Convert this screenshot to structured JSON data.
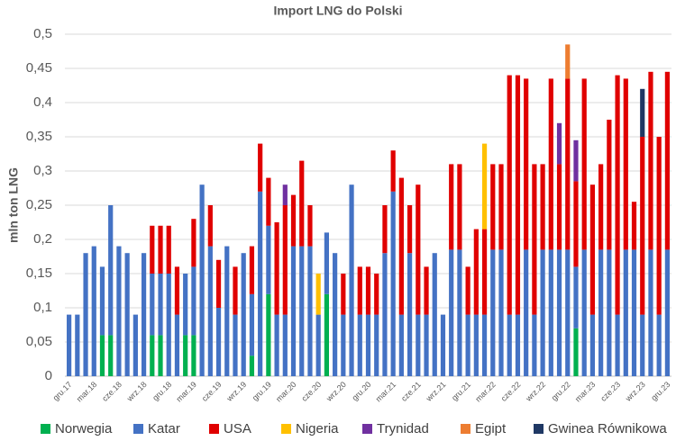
{
  "chart_data": {
    "type": "stacked_bar",
    "title": "Import LNG do Polski",
    "y_label": "mln ton LNG",
    "categories": [
      "gru.17",
      null,
      null,
      "mar.18",
      null,
      null,
      "cze.18",
      null,
      null,
      "wrz.18",
      null,
      null,
      "gru.18",
      null,
      null,
      "mar.19",
      null,
      null,
      "cze.19",
      null,
      null,
      "wrz.19",
      null,
      null,
      "gru.19",
      null,
      null,
      "mar.20",
      null,
      null,
      "cze.20",
      null,
      null,
      "wrz.20",
      null,
      null,
      "gru.20",
      null,
      null,
      "mar.21",
      null,
      null,
      "cze.21",
      null,
      null,
      "wrz.21",
      null,
      null,
      "gru.21",
      null,
      null,
      "mar.22",
      null,
      null,
      "cze.22",
      null,
      null,
      "wrz.22",
      null,
      null,
      "gru.22",
      null,
      null,
      "mar.23",
      null,
      null,
      "cze.23",
      null,
      null,
      "wrz.23",
      null,
      null,
      "gru.23"
    ],
    "series": [
      {
        "name": "Norwegia",
        "color": "#00b050",
        "values": [
          0,
          0,
          0,
          0,
          0.06,
          0.06,
          0,
          0,
          0,
          0,
          0.06,
          0.06,
          0,
          0,
          0.06,
          0.06,
          0,
          0,
          0,
          0,
          0,
          0,
          0.03,
          0,
          0.12,
          0,
          0,
          0,
          0,
          0,
          0,
          0.12,
          0,
          0,
          0,
          0,
          0,
          0,
          0,
          0,
          0,
          0,
          0,
          0,
          0,
          0,
          0,
          0,
          0,
          0,
          0,
          0,
          0,
          0,
          0,
          0,
          0,
          0,
          0,
          0,
          0,
          0.07,
          0,
          0,
          0,
          0,
          0,
          0,
          0,
          0,
          0,
          0,
          0
        ]
      },
      {
        "name": "Katar",
        "color": "#4472c4",
        "values": [
          0.09,
          0.09,
          0.18,
          0.19,
          0.1,
          0.19,
          0.19,
          0.18,
          0.09,
          0.18,
          0.09,
          0.09,
          0.15,
          0.09,
          0.09,
          0.1,
          0.28,
          0.19,
          0.1,
          0.19,
          0.09,
          0.18,
          0.09,
          0.27,
          0.1,
          0.09,
          0.09,
          0.19,
          0.19,
          0.19,
          0.09,
          0.09,
          0.18,
          0.09,
          0.28,
          0.09,
          0.09,
          0.09,
          0.18,
          0.27,
          0.09,
          0.18,
          0.09,
          0.09,
          0.18,
          0.09,
          0.185,
          0.185,
          0.09,
          0.09,
          0.09,
          0.185,
          0.185,
          0.09,
          0.09,
          0.185,
          0.09,
          0.185,
          0.185,
          0.185,
          0.185,
          0.09,
          0.185,
          0.09,
          0.185,
          0.185,
          0.09,
          0.185,
          0.185,
          0.09,
          0.185,
          0.09,
          0.185
        ]
      },
      {
        "name": "USA",
        "color": "#e00000",
        "values": [
          0,
          0,
          0,
          0,
          0,
          0,
          0,
          0,
          0,
          0,
          0.07,
          0.07,
          0.07,
          0.07,
          0,
          0.07,
          0,
          0.06,
          0.07,
          0,
          0.07,
          0,
          0.07,
          0.07,
          0.07,
          0.135,
          0.16,
          0.075,
          0.125,
          0.06,
          0,
          0,
          0,
          0.06,
          0,
          0.07,
          0.07,
          0.06,
          0.07,
          0.06,
          0.2,
          0.07,
          0.19,
          0.07,
          0,
          0,
          0.125,
          0.125,
          0.07,
          0.125,
          0.125,
          0.125,
          0.125,
          0.35,
          0.35,
          0.25,
          0.22,
          0.125,
          0.25,
          0.125,
          0.25,
          0.125,
          0.25,
          0.19,
          0.125,
          0.19,
          0.35,
          0.25,
          0.07,
          0.26,
          0.26,
          0.26,
          0.26
        ]
      },
      {
        "name": "Nigeria",
        "color": "#ffc000",
        "values": [
          0,
          0,
          0,
          0,
          0,
          0,
          0,
          0,
          0,
          0,
          0,
          0,
          0,
          0,
          0,
          0,
          0,
          0,
          0,
          0,
          0,
          0,
          0,
          0,
          0,
          0,
          0,
          0,
          0,
          0,
          0.06,
          0,
          0,
          0,
          0,
          0,
          0,
          0,
          0,
          0,
          0,
          0,
          0,
          0,
          0,
          0,
          0,
          0,
          0,
          0,
          0.125,
          0,
          0,
          0,
          0,
          0,
          0,
          0,
          0,
          0,
          0,
          0,
          0,
          0,
          0,
          0,
          0,
          0,
          0,
          0,
          0,
          0,
          0
        ]
      },
      {
        "name": "Trynidad",
        "color": "#7030a0",
        "values": [
          0,
          0,
          0,
          0,
          0,
          0,
          0,
          0,
          0,
          0,
          0,
          0,
          0,
          0,
          0,
          0,
          0,
          0,
          0,
          0,
          0,
          0,
          0,
          0,
          0,
          0,
          0.03,
          0,
          0,
          0,
          0,
          0,
          0,
          0,
          0,
          0,
          0,
          0,
          0,
          0,
          0,
          0,
          0,
          0,
          0,
          0,
          0,
          0,
          0,
          0,
          0,
          0,
          0,
          0,
          0,
          0,
          0,
          0,
          0,
          0.06,
          0,
          0.06,
          0,
          0,
          0,
          0,
          0,
          0,
          0,
          0,
          0,
          0,
          0
        ]
      },
      {
        "name": "Egipt",
        "color": "#ed7d31",
        "values": [
          0,
          0,
          0,
          0,
          0,
          0,
          0,
          0,
          0,
          0,
          0,
          0,
          0,
          0,
          0,
          0,
          0,
          0,
          0,
          0,
          0,
          0,
          0,
          0,
          0,
          0,
          0,
          0,
          0,
          0,
          0,
          0,
          0,
          0,
          0,
          0,
          0,
          0,
          0,
          0,
          0,
          0,
          0,
          0,
          0,
          0,
          0,
          0,
          0,
          0,
          0,
          0,
          0,
          0,
          0,
          0,
          0,
          0,
          0,
          0,
          0.05,
          0,
          0,
          0,
          0,
          0,
          0,
          0,
          0,
          0,
          0,
          0,
          0
        ]
      },
      {
        "name": "Gwinea Równikowa",
        "color": "#1f3864",
        "values": [
          0,
          0,
          0,
          0,
          0,
          0,
          0,
          0,
          0,
          0,
          0,
          0,
          0,
          0,
          0,
          0,
          0,
          0,
          0,
          0,
          0,
          0,
          0,
          0,
          0,
          0,
          0,
          0,
          0,
          0,
          0,
          0,
          0,
          0,
          0,
          0,
          0,
          0,
          0,
          0,
          0,
          0,
          0,
          0,
          0,
          0,
          0,
          0,
          0,
          0,
          0,
          0,
          0,
          0,
          0,
          0,
          0,
          0,
          0,
          0,
          0,
          0,
          0,
          0,
          0,
          0,
          0,
          0,
          0,
          0.07,
          0,
          0,
          0
        ]
      }
    ],
    "ylim": [
      0,
      0.5
    ],
    "yticks": [
      0,
      {
        "value": 0.05,
        "label": "0,05"
      },
      {
        "value": 0.1,
        "label": "0,1"
      },
      {
        "value": 0.15,
        "label": "0,15"
      },
      {
        "value": 0.2,
        "label": "0,2"
      },
      {
        "value": 0.25,
        "label": "0,25"
      },
      {
        "value": 0.3,
        "label": "0,3"
      },
      {
        "value": 0.35,
        "label": "0,35"
      },
      {
        "value": 0.4,
        "label": "0,4"
      },
      {
        "value": 0.45,
        "label": "0,45"
      },
      {
        "value": 0.5,
        "label": "0,5"
      }
    ],
    "grid": true,
    "legend": "bottom"
  }
}
